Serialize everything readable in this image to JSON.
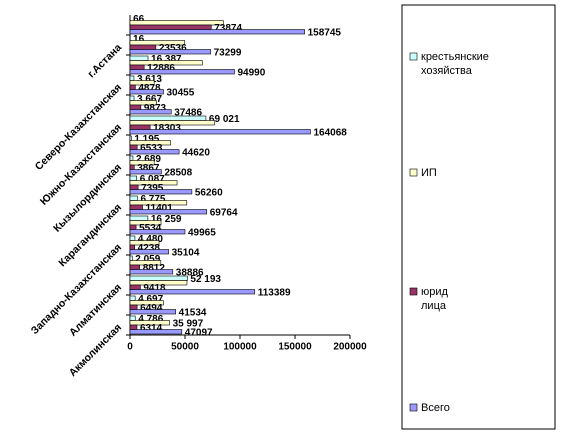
{
  "chart_data": {
    "type": "bar",
    "orientation": "horizontal",
    "categories": [
      "Акмолинская",
      null,
      "Алматинская",
      null,
      "Западно-Казахстанская",
      null,
      "Карагандинская",
      null,
      "Кызылординская",
      null,
      "Южно-Казахстанская",
      null,
      "Северо-Казахстанская",
      null,
      "г.Астана",
      null
    ],
    "series": [
      {
        "name": "крестьянские хозяйства",
        "color": "#ccffff",
        "values": [
          4786,
          4697,
          52193,
          2059,
          4480,
          16259,
          6775,
          6087,
          2689,
          1195,
          69021,
          3667,
          3613,
          16387,
          16,
          66
        ],
        "value_labels": [
          "4 786",
          "4 697",
          "52 193",
          "2 059",
          "4 480",
          "16 259",
          "6 775",
          "6 087",
          "2 689",
          "1 195",
          "69 021",
          "3 667",
          "3 613",
          "16 387",
          "16",
          "66"
        ]
      },
      {
        "name": "ИП",
        "color": "#ffffcc",
        "values": [
          35997,
          30343,
          51778,
          28015,
          26386,
          28172,
          51588,
          42778,
          21952,
          36892,
          76744,
          23946,
          21964,
          65717,
          49747,
          84805
        ],
        "value_labels": [
          "35 997",
          null,
          null,
          null,
          null,
          null,
          null,
          null,
          null,
          null,
          null,
          null,
          null,
          null,
          null,
          null
        ]
      },
      {
        "name": "юрид лица",
        "color": "#993366",
        "values": [
          6314,
          6494,
          9418,
          8812,
          4238,
          5534,
          11401,
          7395,
          3867,
          6533,
          18303,
          9873,
          4878,
          12886,
          23536,
          73874
        ]
      },
      {
        "name": "Всего",
        "color": "#9999ff",
        "values": [
          47097,
          41534,
          113389,
          38886,
          35104,
          49965,
          69764,
          56260,
          28508,
          44620,
          164068,
          37486,
          30455,
          94990,
          73299,
          158745
        ]
      }
    ],
    "xlim": [
      0,
      200000
    ],
    "xticks": [
      0,
      50000,
      100000,
      150000,
      200000
    ],
    "grid": false,
    "legend": "right"
  }
}
